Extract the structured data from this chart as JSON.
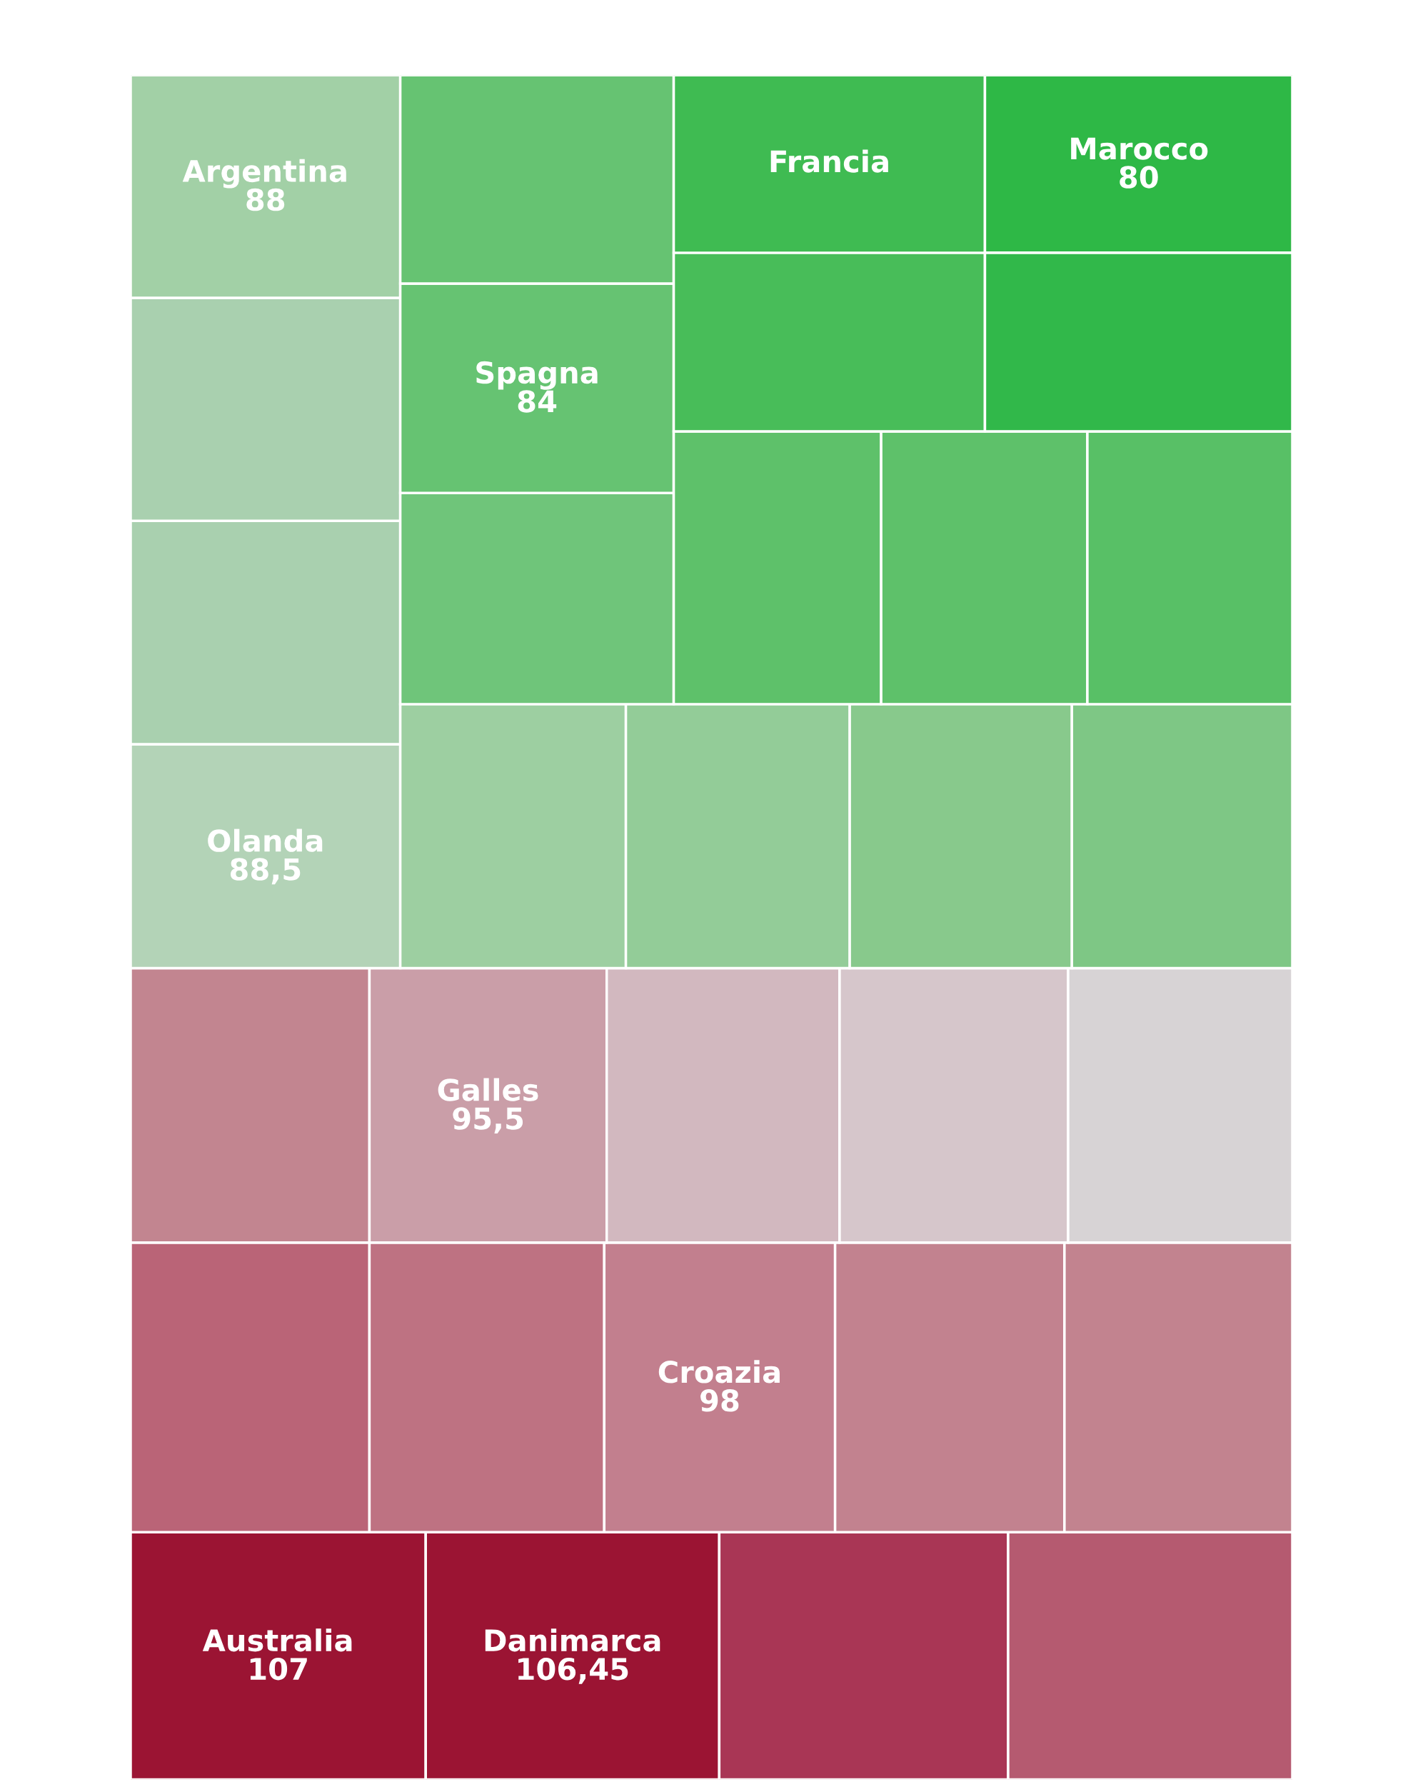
{
  "chart_data": {
    "type": "other",
    "categories": [
      "Australia",
      "Danimarca",
      null,
      null,
      null,
      null,
      "Croazia",
      null,
      null,
      null,
      "Galles",
      null,
      null,
      null,
      "Olanda",
      null,
      null,
      "Argentina",
      null,
      null,
      null,
      null,
      null,
      "Spagna",
      null,
      null,
      null,
      null,
      null,
      "Francia",
      null,
      "Marocco"
    ],
    "values": [
      107,
      106.45,
      null,
      null,
      null,
      null,
      98,
      null,
      null,
      null,
      95.5,
      null,
      null,
      null,
      88.5,
      null,
      null,
      88,
      null,
      null,
      null,
      null,
      null,
      84,
      null,
      null,
      null,
      null,
      null,
      null,
      null,
      80
    ],
    "value_labels": [
      "107",
      "106,45",
      null,
      null,
      null,
      null,
      "98",
      null,
      null,
      null,
      "95,5",
      null,
      null,
      null,
      "88,5",
      null,
      null,
      "88",
      null,
      null,
      null,
      null,
      null,
      "84",
      null,
      null,
      null,
      null,
      null,
      null,
      null,
      "80"
    ],
    "colors": [
      "#9b1433",
      "#9b1433",
      "#a93655",
      "#b55a70",
      "#ba6477",
      "#be7282",
      "#c27f8e",
      "#c2828f",
      "#c2838f",
      "#c28590",
      "#ca9ea8",
      "#d2b8bf",
      "#d6c6cb",
      "#d7d3d5",
      "#b3d3b7",
      "#a9d0af",
      "#a9d0af",
      "#a2d0a6",
      "#9dcfa1",
      "#93cc98",
      "#88c98c",
      "#7ec785",
      "#6fc57a",
      "#66c372",
      "#66c372",
      "#5ec16a",
      "#5ec16a",
      "#58c066",
      "#48bd59",
      "#3fbb52",
      "#31b84a",
      "#2eb846"
    ]
  }
}
